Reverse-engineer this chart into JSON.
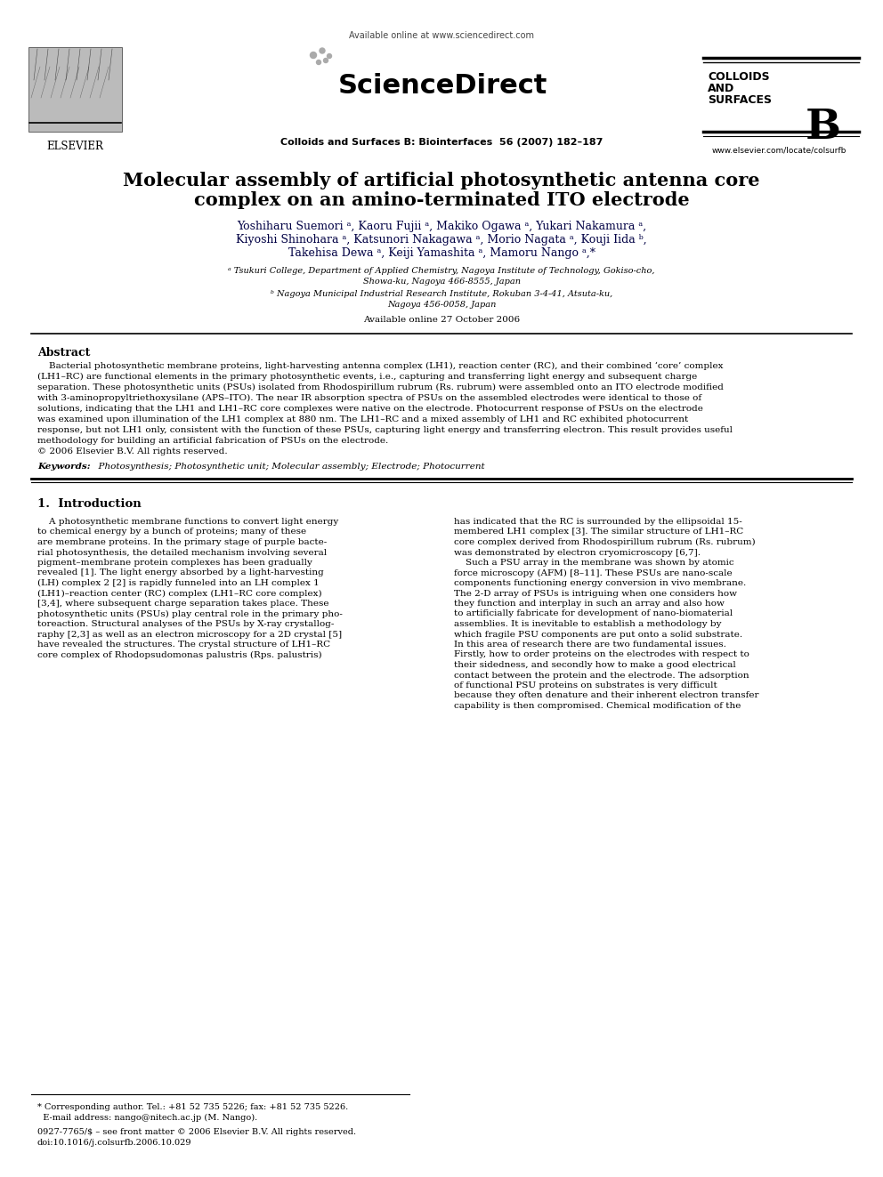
{
  "bg_color": "#ffffff",
  "available_online_header": "Available online at www.sciencedirect.com",
  "sciencedirect": "ScienceDirect",
  "journal_line": "Colloids and Surfaces B: Biointerfaces  56 (2007) 182–187",
  "colloids1": "COLLOIDS",
  "colloids2": "AND",
  "colloids3": "SURFACES",
  "colloids_b": "B",
  "elsevier_label": "ELSEVIER",
  "elsevier_url": "www.elsevier.com/locate/colsurfb",
  "title_line1": "Molecular assembly of artificial photosynthetic antenna core",
  "title_line2": "complex on an amino-terminated ITO electrode",
  "author_line1": "Yoshiharu Suemori ᵃ, Kaoru Fujii ᵃ, Makiko Ogawa ᵃ, Yukari Nakamura ᵃ,",
  "author_line2": "Kiyoshi Shinohara ᵃ, Katsunori Nakagawa ᵃ, Morio Nagata ᵃ, Kouji Iida ᵇ,",
  "author_line3": "Takehisa Dewa ᵃ, Keiji Yamashita ᵃ, Mamoru Nango ᵃ,*",
  "affil_a1": "ᵃ Tsukuri College, Department of Applied Chemistry, Nagoya Institute of Technology, Gokiso-cho,",
  "affil_a2": "Showa-ku, Nagoya 466-8555, Japan",
  "affil_b1": "ᵇ Nagoya Municipal Industrial Research Institute, Rokuban 3-4-41, Atsuta-ku,",
  "affil_b2": "Nagoya 456-0058, Japan",
  "available_date": "Available online 27 October 2006",
  "abstract_label": "Abstract",
  "abstract_indent": "    Bacterial photosynthetic membrane proteins, light-harvesting antenna complex (LH1), reaction center (RC), and their combined ‘core’ complex",
  "abstract_lines": [
    "    Bacterial photosynthetic membrane proteins, light-harvesting antenna complex (LH1), reaction center (RC), and their combined ‘core’ complex",
    "(LH1–RC) are functional elements in the primary photosynthetic events, i.e., capturing and transferring light energy and subsequent charge",
    "separation. These photosynthetic units (PSUs) isolated from Rhodospirillum rubrum (Rs. rubrum) were assembled onto an ITO electrode modified",
    "with 3-aminopropyltriethoxysilane (APS–ITO). The near IR absorption spectra of PSUs on the assembled electrodes were identical to those of",
    "solutions, indicating that the LH1 and LH1–RC core complexes were native on the electrode. Photocurrent response of PSUs on the electrode",
    "was examined upon illumination of the LH1 complex at 880 nm. The LH1–RC and a mixed assembly of LH1 and RC exhibited photocurrent",
    "response, but not LH1 only, consistent with the function of these PSUs, capturing light energy and transferring electron. This result provides useful",
    "methodology for building an artificial fabrication of PSUs on the electrode.",
    "© 2006 Elsevier B.V. All rights reserved."
  ],
  "kw_label": "Keywords:",
  "kw_text": "  Photosynthesis; Photosynthetic unit; Molecular assembly; Electrode; Photocurrent",
  "sec1_label": "1.  Introduction",
  "col1_lines": [
    "    A photosynthetic membrane functions to convert light energy",
    "to chemical energy by a bunch of proteins; many of these",
    "are membrane proteins. In the primary stage of purple bacte-",
    "rial photosynthesis, the detailed mechanism involving several",
    "pigment–membrane protein complexes has been gradually",
    "revealed [1]. The light energy absorbed by a light-harvesting",
    "(LH) complex 2 [2] is rapidly funneled into an LH complex 1",
    "(LH1)–reaction center (RC) complex (LH1–RC core complex)",
    "[3,4], where subsequent charge separation takes place. These",
    "photosynthetic units (PSUs) play central role in the primary pho-",
    "toreaction. Structural analyses of the PSUs by X-ray crystallog-",
    "raphy [2,3] as well as an electron microscopy for a 2D crystal [5]",
    "have revealed the structures. The crystal structure of LH1–RC",
    "core complex of Rhodopsudomonas palustris (Rps. palustris)"
  ],
  "col2_lines": [
    "has indicated that the RC is surrounded by the ellipsoidal 15-",
    "membered LH1 complex [3]. The similar structure of LH1–RC",
    "core complex derived from Rhodospirillum rubrum (Rs. rubrum)",
    "was demonstrated by electron cryomicroscopy [6,7].",
    "    Such a PSU array in the membrane was shown by atomic",
    "force microscopy (AFM) [8–11]. These PSUs are nano-scale",
    "components functioning energy conversion in vivo membrane.",
    "The 2-D array of PSUs is intriguing when one considers how",
    "they function and interplay in such an array and also how",
    "to artificially fabricate for development of nano-biomaterial",
    "assemblies. It is inevitable to establish a methodology by",
    "which fragile PSU components are put onto a solid substrate.",
    "In this area of research there are two fundamental issues.",
    "Firstly, how to order proteins on the electrodes with respect to",
    "their sidedness, and secondly how to make a good electrical",
    "contact between the protein and the electrode. The adsorption",
    "of functional PSU proteins on substrates is very difficult",
    "because they often denature and their inherent electron transfer",
    "capability is then compromised. Chemical modification of the"
  ],
  "footnote1": "* Corresponding author. Tel.: +81 52 735 5226; fax: +81 52 735 5226.",
  "footnote2": "  E-mail address: nango@nitech.ac.jp (M. Nango).",
  "issn1": "0927-7765/$ – see front matter © 2006 Elsevier B.V. All rights reserved.",
  "issn2": "doi:10.1016/j.colsurfb.2006.10.029"
}
